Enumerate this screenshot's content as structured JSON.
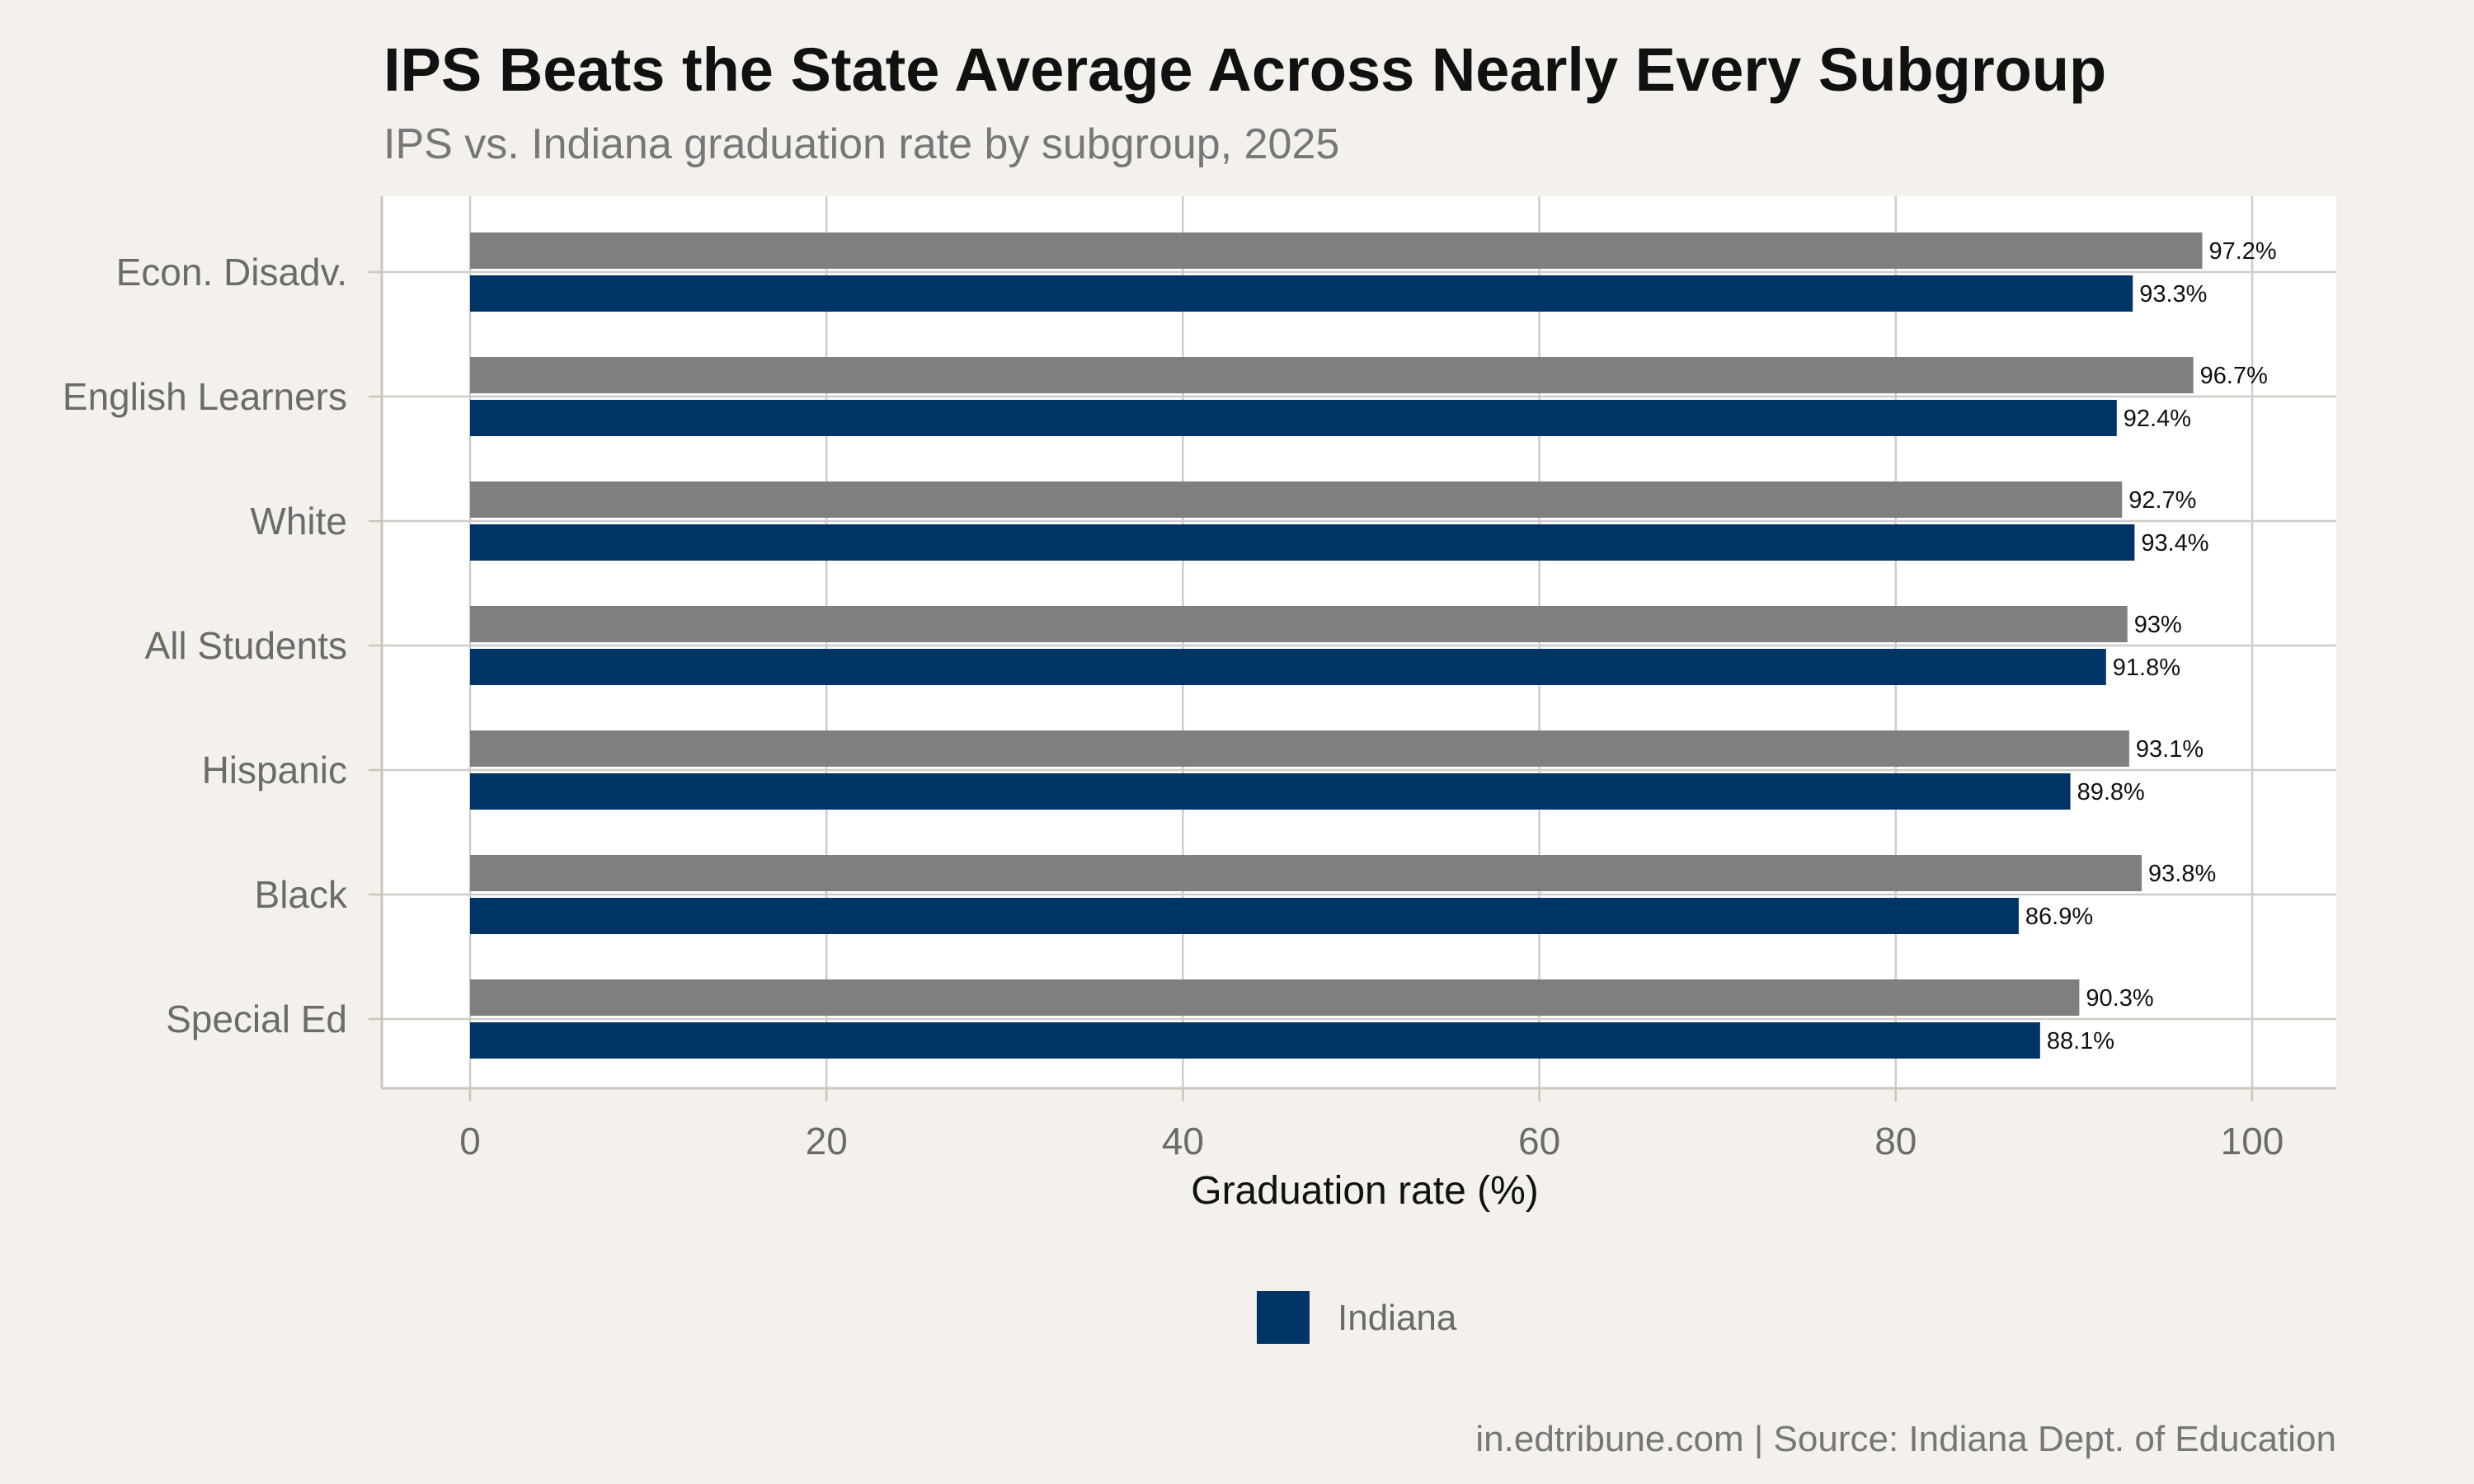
{
  "chart_data": {
    "type": "bar",
    "orientation": "horizontal",
    "title": "IPS Beats the State Average Across Nearly Every Subgroup",
    "subtitle": "IPS vs. Indiana graduation rate by subgroup, 2025",
    "xlabel": "Graduation rate (%)",
    "ylabel": "",
    "xlim": [
      0,
      100
    ],
    "xticks": [
      0,
      20,
      40,
      60,
      80,
      100
    ],
    "grid": true,
    "categories": [
      "Econ. Disadv.",
      "English Learners",
      "White",
      "All Students",
      "Hispanic",
      "Black",
      "Special Ed"
    ],
    "series": [
      {
        "color": "#7f7f7f",
        "values": [
          97.2,
          96.7,
          92.7,
          93.0,
          93.1,
          93.8,
          90.3
        ],
        "labels": [
          "97.2%",
          "96.7%",
          "92.7%",
          "93%",
          "93.1%",
          "93.8%",
          "90.3%"
        ]
      },
      {
        "name": "Indiana",
        "color": "#003366",
        "values": [
          93.3,
          92.4,
          93.4,
          91.8,
          89.8,
          86.9,
          88.1
        ],
        "labels": [
          "93.3%",
          "92.4%",
          "93.4%",
          "91.8%",
          "89.8%",
          "86.9%",
          "88.1%"
        ]
      }
    ],
    "legend": {
      "position": "bottom",
      "entries": [
        "Indiana"
      ]
    },
    "caption": "in.edtribune.com | Source: Indiana Dept. of Education"
  }
}
